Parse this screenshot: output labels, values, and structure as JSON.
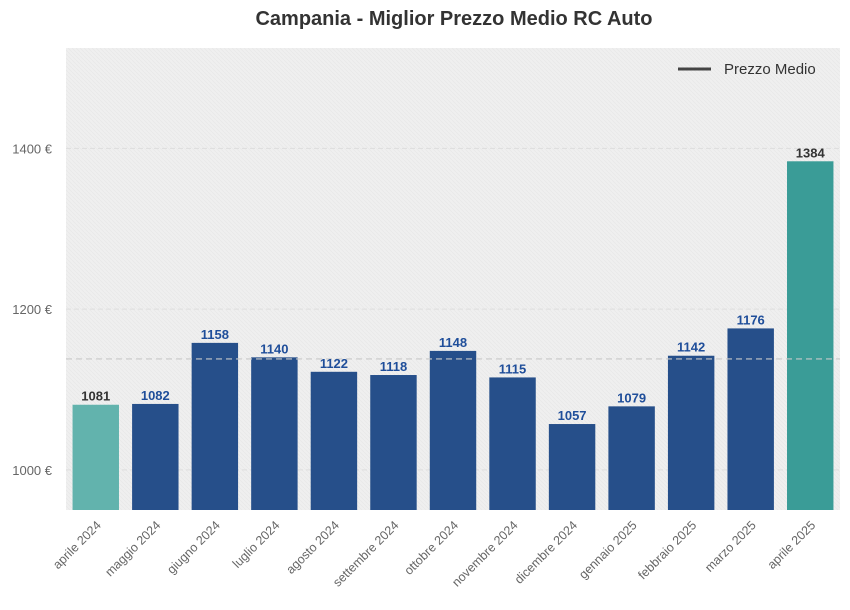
{
  "chart_data": {
    "type": "bar",
    "title": "Campania - Miglior Prezzo Medio RC Auto",
    "xlabel": "",
    "ylabel": "",
    "categories": [
      "aprile 2024",
      "maggio 2024",
      "giugno 2024",
      "luglio 2024",
      "agosto 2024",
      "settembre 2024",
      "ottobre 2024",
      "novembre 2024",
      "dicembre 2024",
      "gennaio 2025",
      "febbraio 2025",
      "marzo 2025",
      "aprile 2025"
    ],
    "values": [
      1081,
      1082,
      1158,
      1140,
      1122,
      1118,
      1148,
      1115,
      1057,
      1079,
      1142,
      1176,
      1384
    ],
    "ylim": [
      950,
      1525
    ],
    "yticks": [
      1000,
      1200,
      1400
    ],
    "ytick_labels": [
      "1000 €",
      "1200 €",
      "1400 €"
    ],
    "mean_line": {
      "value": 1138,
      "legend_label": "Prezzo Medio"
    },
    "legend_position": "top-right",
    "grid": true,
    "colors": {
      "default_bar": "#264f8a",
      "first_bar": "#62b3ad",
      "last_bar": "#3a9c97",
      "default_label": "#1f4e9a",
      "highlight_label": "#333333",
      "plot_bg": "#efefef",
      "mean_line": "#c8c8c8",
      "legend_line": "#444444"
    }
  }
}
